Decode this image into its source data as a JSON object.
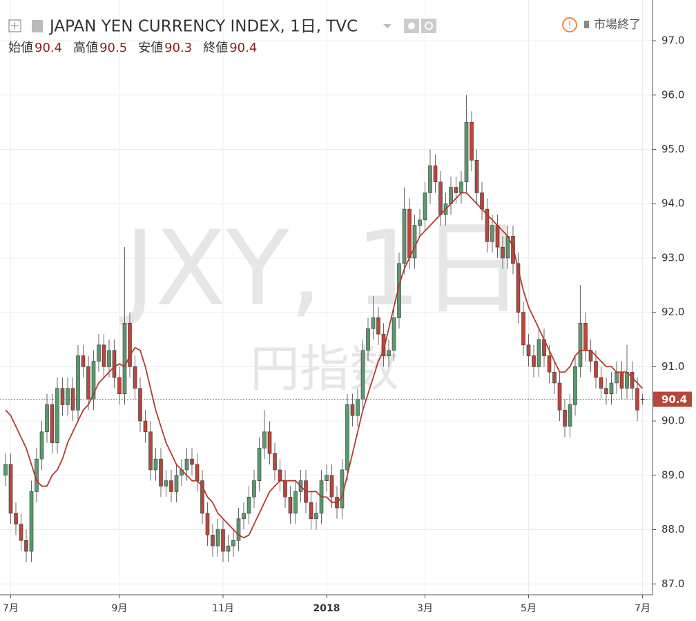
{
  "chart_data": {
    "type": "candlestick",
    "title": "JAPAN YEN CURRENCY INDEX, 1日, TVC",
    "ohlc_legend": [
      {
        "label": "始値",
        "value": 90.4
      },
      {
        "label": "高値",
        "value": 90.5
      },
      {
        "label": "安値",
        "value": 90.3
      },
      {
        "label": "終値",
        "value": 90.4
      }
    ],
    "status": "市場終了",
    "watermark": "JXY, 1日",
    "watermark_sub": "円指数",
    "categories": [
      null,
      "7月",
      null,
      null,
      null,
      null,
      null,
      null,
      null,
      null,
      null,
      null,
      null,
      null,
      null,
      null,
      null,
      null,
      null,
      null,
      null,
      null,
      "9月",
      null,
      null,
      null,
      null,
      null,
      null,
      null,
      null,
      null,
      null,
      null,
      null,
      null,
      null,
      null,
      null,
      null,
      null,
      null,
      "11月",
      null,
      null,
      null,
      null,
      null,
      null,
      null,
      null,
      null,
      null,
      null,
      null,
      null,
      null,
      null,
      null,
      null,
      null,
      null,
      "2018",
      null,
      null,
      null,
      null,
      null,
      null,
      null,
      null,
      null,
      null,
      null,
      null,
      null,
      null,
      null,
      null,
      null,
      null,
      "3月",
      null,
      null,
      null,
      null,
      null,
      null,
      null,
      null,
      null,
      null,
      null,
      null,
      null,
      null,
      null,
      null,
      null,
      null,
      null,
      "5月",
      null,
      null,
      null,
      null,
      null,
      null,
      null,
      null,
      null,
      null,
      null,
      null,
      null,
      null,
      null,
      null,
      null,
      null,
      null,
      null,
      null,
      "7月"
    ],
    "open": [
      89.0,
      89.2,
      88.3,
      88.1,
      87.8,
      87.6,
      88.7,
      89.3,
      89.8,
      90.3,
      89.6,
      90.6,
      90.3,
      90.6,
      90.2,
      91.2,
      91.0,
      90.4,
      91.1,
      91.4,
      91.0,
      91.3,
      90.8,
      90.5,
      91.8,
      91.0,
      90.6,
      90.0,
      89.8,
      89.1,
      89.3,
      88.8,
      88.9,
      88.7,
      89.0,
      89.1,
      89.3,
      89.2,
      88.9,
      88.3,
      87.9,
      87.7,
      88.0,
      87.6,
      87.7,
      87.8,
      88.2,
      88.3,
      88.6,
      88.9,
      89.5,
      89.8,
      89.4,
      89.1,
      88.9,
      88.6,
      88.3,
      88.7,
      88.9,
      88.5,
      88.2,
      88.3,
      88.9,
      89.0,
      88.6,
      88.4,
      89.1,
      90.3,
      90.1,
      90.4,
      91.3,
      91.7,
      91.9,
      91.6,
      91.2,
      91.3,
      91.9,
      92.9,
      93.9,
      93.0,
      93.6,
      93.7,
      94.2,
      94.7,
      94.4,
      93.8,
      94.0,
      94.3,
      94.2,
      94.4,
      95.5,
      94.8,
      94.2,
      93.9,
      93.3,
      93.6,
      93.2,
      93.0,
      93.4,
      92.9,
      92.0,
      91.4,
      91.2,
      91.0,
      91.5,
      91.2,
      90.9,
      90.7,
      90.2,
      89.9,
      90.3,
      91.0,
      91.8,
      91.3,
      91.1,
      90.8,
      90.6,
      90.5,
      90.7,
      90.9,
      90.6,
      90.9,
      90.6,
      90.4
    ],
    "high": [
      89.4,
      89.4,
      88.5,
      88.3,
      88.0,
      88.9,
      89.5,
      90.0,
      90.5,
      90.5,
      90.8,
      90.8,
      90.8,
      90.8,
      91.4,
      91.4,
      91.2,
      91.3,
      91.6,
      91.6,
      91.5,
      91.5,
      91.0,
      93.2,
      92.0,
      91.2,
      90.8,
      90.2,
      90.0,
      89.5,
      89.5,
      89.1,
      89.1,
      89.2,
      89.3,
      89.5,
      89.5,
      89.4,
      89.1,
      88.5,
      88.1,
      88.2,
      88.2,
      87.9,
      88.0,
      88.4,
      88.5,
      88.8,
      89.1,
      89.7,
      90.2,
      90.0,
      89.6,
      89.3,
      89.1,
      88.8,
      88.9,
      89.1,
      89.1,
      88.7,
      88.5,
      89.1,
      89.2,
      89.2,
      88.8,
      89.3,
      90.5,
      90.5,
      90.6,
      91.5,
      91.9,
      92.3,
      92.1,
      91.8,
      91.5,
      92.1,
      93.1,
      94.3,
      94.1,
      93.8,
      93.9,
      94.4,
      95.0,
      94.9,
      94.6,
      94.2,
      94.5,
      94.5,
      94.6,
      96.0,
      95.7,
      95.0,
      94.4,
      94.1,
      93.8,
      93.8,
      93.4,
      93.6,
      93.6,
      93.1,
      92.2,
      91.6,
      91.4,
      91.7,
      91.7,
      91.4,
      91.1,
      90.9,
      90.4,
      90.5,
      91.2,
      92.5,
      92.0,
      91.5,
      91.3,
      91.0,
      90.8,
      90.9,
      91.1,
      91.1,
      91.4,
      91.1,
      90.8,
      90.5
    ],
    "low": [
      88.8,
      88.1,
      87.9,
      87.6,
      87.4,
      87.4,
      88.5,
      89.1,
      89.6,
      89.4,
      89.4,
      90.1,
      90.1,
      90.0,
      90.0,
      90.8,
      90.2,
      90.2,
      90.9,
      90.8,
      90.8,
      90.6,
      90.3,
      90.3,
      90.8,
      90.4,
      89.8,
      89.6,
      88.9,
      88.9,
      88.6,
      88.6,
      88.5,
      88.5,
      88.8,
      88.9,
      89.0,
      88.7,
      88.1,
      87.7,
      87.5,
      87.5,
      87.4,
      87.4,
      87.5,
      87.6,
      88.0,
      88.1,
      88.4,
      88.7,
      89.3,
      89.2,
      88.9,
      88.7,
      88.4,
      88.1,
      88.1,
      88.5,
      88.3,
      88.0,
      88.0,
      88.1,
      88.7,
      88.4,
      88.2,
      88.2,
      88.9,
      89.9,
      89.9,
      90.2,
      91.1,
      91.5,
      91.4,
      91.0,
      91.0,
      91.1,
      91.7,
      92.7,
      92.8,
      92.8,
      93.4,
      93.5,
      94.0,
      94.2,
      93.6,
      93.6,
      93.8,
      94.0,
      94.0,
      94.2,
      94.6,
      94.0,
      93.7,
      93.1,
      93.1,
      93.0,
      92.8,
      92.8,
      92.7,
      91.8,
      91.2,
      91.0,
      90.8,
      90.8,
      91.0,
      90.7,
      90.5,
      90.0,
      89.7,
      89.7,
      90.1,
      90.8,
      91.1,
      90.9,
      90.6,
      90.4,
      90.3,
      90.3,
      90.5,
      90.4,
      90.4,
      90.4,
      90.0,
      90.3
    ],
    "close": [
      89.2,
      88.3,
      88.1,
      87.8,
      87.6,
      88.7,
      89.3,
      89.8,
      90.3,
      89.6,
      90.6,
      90.3,
      90.6,
      90.2,
      91.2,
      91.0,
      90.4,
      91.1,
      91.4,
      91.0,
      91.3,
      90.8,
      90.5,
      91.8,
      91.0,
      90.6,
      90.0,
      89.8,
      89.1,
      89.3,
      88.8,
      88.9,
      88.7,
      89.0,
      89.1,
      89.3,
      89.2,
      88.9,
      88.3,
      87.9,
      87.7,
      88.0,
      87.6,
      87.7,
      87.8,
      88.2,
      88.3,
      88.6,
      88.9,
      89.5,
      89.8,
      89.4,
      89.1,
      88.9,
      88.6,
      88.3,
      88.7,
      88.9,
      88.5,
      88.2,
      88.3,
      88.9,
      89.0,
      88.6,
      88.4,
      89.1,
      90.3,
      90.1,
      90.4,
      91.3,
      91.7,
      91.9,
      91.6,
      91.2,
      91.3,
      91.9,
      92.9,
      93.9,
      93.0,
      93.6,
      93.7,
      94.2,
      94.7,
      94.4,
      93.8,
      94.0,
      94.3,
      94.2,
      94.4,
      95.5,
      94.8,
      94.2,
      93.9,
      93.3,
      93.6,
      93.2,
      93.0,
      93.4,
      92.9,
      92.0,
      91.4,
      91.2,
      91.0,
      91.5,
      91.2,
      90.9,
      90.7,
      90.2,
      89.9,
      90.3,
      91.0,
      91.8,
      91.3,
      91.1,
      90.8,
      90.6,
      90.5,
      90.7,
      90.9,
      90.6,
      90.9,
      90.6,
      90.2,
      90.4
    ],
    "ma": {
      "color": "#b03a2e",
      "values": [
        90.2,
        90.1,
        89.9,
        89.7,
        89.5,
        89.2,
        88.9,
        88.8,
        88.8,
        89.0,
        89.1,
        89.3,
        89.6,
        89.8,
        90.0,
        90.2,
        90.3,
        90.5,
        90.7,
        90.8,
        90.9,
        91.0,
        91.05,
        91.0,
        91.2,
        91.35,
        91.3,
        91.0,
        90.6,
        90.2,
        89.9,
        89.6,
        89.4,
        89.2,
        89.1,
        89.0,
        88.9,
        88.9,
        88.8,
        88.6,
        88.5,
        88.3,
        88.2,
        88.1,
        88.0,
        87.9,
        87.85,
        87.9,
        88.1,
        88.3,
        88.5,
        88.7,
        88.8,
        88.9,
        88.9,
        88.9,
        88.9,
        88.8,
        88.7,
        88.7,
        88.7,
        88.6,
        88.6,
        88.5,
        88.5,
        88.6,
        89.0,
        89.4,
        89.8,
        90.2,
        90.5,
        90.8,
        91.1,
        91.3,
        91.7,
        92.1,
        92.5,
        92.8,
        93.0,
        93.2,
        93.4,
        93.5,
        93.6,
        93.7,
        93.8,
        93.9,
        94.0,
        94.1,
        94.2,
        94.2,
        94.1,
        94.0,
        93.9,
        93.8,
        93.7,
        93.6,
        93.5,
        93.4,
        93.2,
        92.8,
        92.4,
        92.1,
        91.9,
        91.7,
        91.5,
        91.3,
        91.1,
        90.9,
        90.9,
        91.0,
        91.2,
        91.3,
        91.3,
        91.3,
        91.2,
        91.1,
        91.0,
        91.0,
        90.9,
        90.9,
        90.9,
        90.8,
        90.7,
        90.6
      ]
    },
    "up_color": "#5a9a6e",
    "down_color": "#b8473b",
    "ylim": [
      86.8,
      97.75
    ],
    "yticks": [
      {
        "value": 87,
        "label": "87.0"
      },
      {
        "value": 88,
        "label": "88.0"
      },
      {
        "value": 89,
        "label": "89.0"
      },
      {
        "value": 90,
        "label": "90.0"
      },
      {
        "value": 91,
        "label": "91.0"
      },
      {
        "value": 92,
        "label": "92.0"
      },
      {
        "value": 93,
        "label": "93.0"
      },
      {
        "value": 94,
        "label": "94.0"
      },
      {
        "value": 95,
        "label": "95.0"
      },
      {
        "value": 96,
        "label": "96.0"
      },
      {
        "value": 97,
        "label": "97.0"
      }
    ],
    "current_price": 90.4,
    "grid": true
  }
}
